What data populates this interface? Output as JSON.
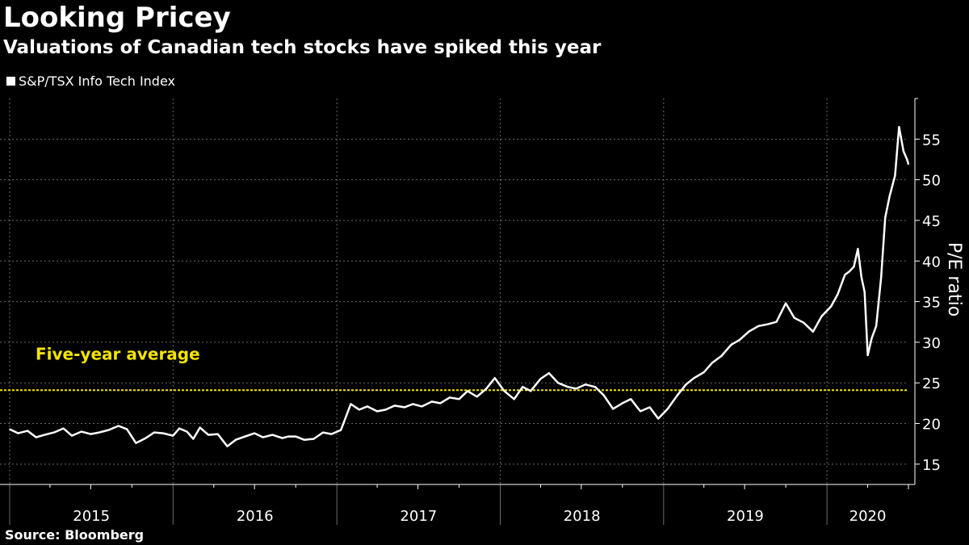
{
  "header": {
    "title": "Looking Pricey",
    "subtitle": "Valuations of Canadian tech stocks have spiked this year"
  },
  "footer": {
    "source": "Source: Bloomberg"
  },
  "colors": {
    "background": "#000000",
    "line": "#ffffff",
    "grid": "#6a6a6a",
    "reference": "#f4e400"
  },
  "chart_data": {
    "type": "line",
    "title": "Looking Pricey",
    "subtitle": "Valuations of Canadian tech stocks have spiked this year",
    "xlabel": "",
    "ylabel": "P/E ratio",
    "ylim": [
      12.5,
      60
    ],
    "xlim": [
      "2015-01-01",
      "2020-07-01"
    ],
    "yticks": [
      15,
      20,
      25,
      30,
      35,
      40,
      45,
      50,
      55
    ],
    "xtick_labels": [
      "2015",
      "2016",
      "2017",
      "2018",
      "2019",
      "2020"
    ],
    "grid": true,
    "legend_position": "top-left",
    "reference_line": {
      "label": "Five-year average",
      "value": 24.1
    },
    "series": [
      {
        "name": "S&P/TSX Info Tech Index",
        "x": [
          "2015-01-01",
          "2015-01-20",
          "2015-02-10",
          "2015-03-01",
          "2015-03-20",
          "2015-04-10",
          "2015-05-01",
          "2015-05-20",
          "2015-06-10",
          "2015-07-01",
          "2015-07-20",
          "2015-08-10",
          "2015-09-01",
          "2015-09-20",
          "2015-10-10",
          "2015-11-01",
          "2015-11-20",
          "2015-12-10",
          "2016-01-01",
          "2016-01-15",
          "2016-02-01",
          "2016-02-15",
          "2016-03-01",
          "2016-03-20",
          "2016-04-10",
          "2016-05-01",
          "2016-05-20",
          "2016-06-10",
          "2016-07-01",
          "2016-07-20",
          "2016-08-10",
          "2016-09-01",
          "2016-09-15",
          "2016-10-01",
          "2016-10-20",
          "2016-11-10",
          "2016-12-01",
          "2016-12-20",
          "2017-01-10",
          "2017-02-01",
          "2017-02-20",
          "2017-03-10",
          "2017-04-01",
          "2017-04-20",
          "2017-05-10",
          "2017-06-01",
          "2017-06-20",
          "2017-07-10",
          "2017-08-01",
          "2017-08-20",
          "2017-09-10",
          "2017-10-01",
          "2017-10-20",
          "2017-11-10",
          "2017-12-01",
          "2017-12-20",
          "2018-01-10",
          "2018-02-01",
          "2018-02-20",
          "2018-03-10",
          "2018-04-01",
          "2018-04-20",
          "2018-05-10",
          "2018-06-01",
          "2018-06-20",
          "2018-07-10",
          "2018-08-01",
          "2018-08-20",
          "2018-09-10",
          "2018-10-01",
          "2018-10-20",
          "2018-11-10",
          "2018-12-01",
          "2018-12-20",
          "2019-01-10",
          "2019-02-01",
          "2019-02-20",
          "2019-03-10",
          "2019-04-01",
          "2019-04-20",
          "2019-05-10",
          "2019-06-01",
          "2019-06-20",
          "2019-07-10",
          "2019-08-01",
          "2019-08-20",
          "2019-09-10",
          "2019-10-01",
          "2019-10-20",
          "2019-11-10",
          "2019-12-01",
          "2019-12-20",
          "2020-01-10",
          "2020-01-25",
          "2020-02-10",
          "2020-02-20",
          "2020-03-01",
          "2020-03-10",
          "2020-03-18",
          "2020-03-25",
          "2020-04-01",
          "2020-04-10",
          "2020-04-20",
          "2020-05-01",
          "2020-05-10",
          "2020-05-20",
          "2020-06-01",
          "2020-06-10",
          "2020-06-20",
          "2020-06-28",
          "2020-07-01"
        ],
        "values": [
          19.3,
          18.8,
          19.1,
          18.3,
          18.6,
          18.9,
          19.4,
          18.5,
          19.0,
          18.7,
          18.9,
          19.2,
          19.7,
          19.3,
          17.6,
          18.2,
          18.9,
          18.8,
          18.5,
          19.4,
          19.0,
          18.1,
          19.5,
          18.6,
          18.7,
          17.2,
          18.0,
          18.4,
          18.8,
          18.3,
          18.6,
          18.2,
          18.4,
          18.4,
          18.0,
          18.1,
          18.9,
          18.7,
          19.2,
          22.4,
          21.7,
          22.1,
          21.5,
          21.7,
          22.2,
          22.0,
          22.4,
          22.1,
          22.7,
          22.5,
          23.2,
          23.0,
          24.0,
          23.3,
          24.3,
          25.6,
          24.0,
          23.0,
          24.5,
          24.0,
          25.5,
          26.2,
          25.0,
          24.5,
          24.3,
          24.8,
          24.5,
          23.5,
          21.8,
          22.5,
          23.0,
          21.5,
          22.0,
          20.6,
          21.8,
          23.5,
          24.8,
          25.6,
          26.3,
          27.5,
          28.3,
          29.7,
          30.3,
          31.3,
          32.0,
          32.2,
          32.5,
          34.8,
          33.0,
          32.4,
          31.3,
          33.2,
          34.4,
          35.9,
          38.3,
          38.7,
          39.3,
          41.5,
          38.0,
          36.2,
          28.4,
          30.5,
          32.0,
          38.0,
          45.3,
          48.0,
          50.5,
          56.5,
          53.5,
          52.5,
          51.9
        ]
      }
    ]
  }
}
